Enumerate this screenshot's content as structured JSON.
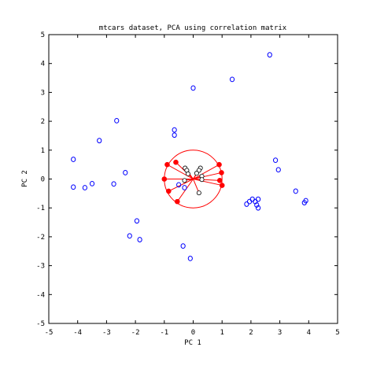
{
  "chart_data": {
    "type": "scatter",
    "title": "mtcars dataset, PCA using correlation matrix",
    "xlabel": "PC 1",
    "ylabel": "PC 2",
    "xlim": [
      -5,
      5
    ],
    "ylim": [
      -5,
      5
    ],
    "x_ticks": [
      "-5",
      "-4",
      "-3",
      "-2",
      "-1",
      "0",
      "1",
      "2",
      "3",
      "4",
      "5"
    ],
    "y_ticks": [
      "-5",
      "-4",
      "-3",
      "-2",
      "-1",
      "0",
      "1",
      "2",
      "3",
      "4",
      "5"
    ],
    "grid": false,
    "series": [
      {
        "marker": "circle-open",
        "color": "#0000ff",
        "points": [
          [
            -4.15,
            0.68
          ],
          [
            -4.15,
            -0.28
          ],
          [
            -3.75,
            -0.3
          ],
          [
            -3.5,
            -0.16
          ],
          [
            -3.25,
            1.33
          ],
          [
            -2.65,
            2.02
          ],
          [
            -2.75,
            -0.17
          ],
          [
            -2.35,
            0.22
          ],
          [
            -2.2,
            -1.97
          ],
          [
            -1.95,
            -1.45
          ],
          [
            -1.85,
            -2.1
          ],
          [
            -0.65,
            1.7
          ],
          [
            -0.65,
            1.52
          ],
          [
            -0.5,
            -0.2
          ],
          [
            -0.3,
            -0.3
          ],
          [
            -0.35,
            -2.32
          ],
          [
            -0.1,
            -2.75
          ],
          [
            0.0,
            3.15
          ],
          [
            1.35,
            3.45
          ],
          [
            2.65,
            4.3
          ],
          [
            1.85,
            -0.87
          ],
          [
            1.95,
            -0.78
          ],
          [
            2.05,
            -0.7
          ],
          [
            2.15,
            -0.78
          ],
          [
            2.2,
            -0.9
          ],
          [
            2.25,
            -1.0
          ],
          [
            2.25,
            -0.7
          ],
          [
            2.85,
            0.65
          ],
          [
            2.95,
            0.32
          ],
          [
            3.55,
            -0.42
          ],
          [
            3.85,
            -0.82
          ],
          [
            3.9,
            -0.75
          ]
        ]
      }
    ],
    "loadings": {
      "color": "#ff0000",
      "circle_radius": 1,
      "filled": [
        [
          -0.9,
          0.5
        ],
        [
          -1.0,
          0.0
        ],
        [
          -0.85,
          -0.42
        ],
        [
          -0.55,
          -0.78
        ],
        [
          -0.6,
          0.58
        ],
        [
          0.9,
          0.5
        ],
        [
          0.98,
          0.22
        ],
        [
          1.0,
          -0.22
        ],
        [
          0.92,
          -0.05
        ]
      ],
      "open": [
        [
          -0.28,
          0.38
        ],
        [
          -0.22,
          0.3
        ],
        [
          -0.18,
          0.18
        ],
        [
          -0.3,
          -0.05
        ],
        [
          0.25,
          0.38
        ],
        [
          0.2,
          0.3
        ],
        [
          0.3,
          0.1
        ],
        [
          0.12,
          0.2
        ],
        [
          0.2,
          -0.48
        ],
        [
          0.3,
          -0.02
        ]
      ]
    }
  }
}
